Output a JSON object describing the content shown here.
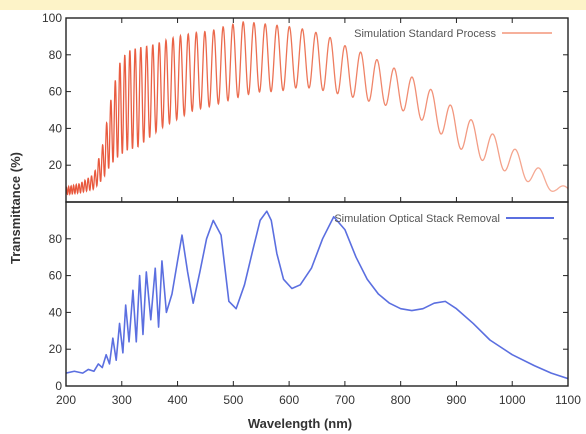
{
  "colors": {
    "top_band": "#fdf3c8",
    "series_top": "#e8553a",
    "series_top_faded": "#f6b09b",
    "series_bottom": "#5b6fe0",
    "axis": "#222222"
  },
  "chart_data": [
    {
      "type": "line",
      "xlabel": "Wavelength (nm)",
      "ylabel": "Transmittance (%)",
      "xlim": [
        200,
        1100
      ],
      "ylim": [
        0,
        100
      ],
      "y_ticks": [
        20,
        40,
        60,
        80,
        100
      ],
      "legend_position": "top-right",
      "grid": false,
      "series": [
        {
          "name": "Simulation Standard Process",
          "x": [
            200,
            225,
            250,
            265,
            280,
            295,
            310,
            330,
            350,
            370,
            400,
            430,
            460,
            490,
            520,
            550,
            580,
            610,
            640,
            670,
            700,
            740,
            780,
            820,
            860,
            900,
            950,
            1000,
            1050,
            1080,
            1100
          ],
          "y_upper": [
            8,
            10,
            15,
            30,
            55,
            75,
            82,
            84,
            85,
            87,
            90,
            92,
            93,
            96,
            98,
            97,
            96,
            95,
            93,
            90,
            85,
            80,
            74,
            68,
            60,
            50,
            40,
            30,
            18,
            10,
            8
          ],
          "y_lower": [
            4,
            5,
            7,
            12,
            20,
            25,
            28,
            30,
            35,
            40,
            45,
            50,
            52,
            55,
            58,
            60,
            60,
            62,
            62,
            60,
            58,
            55,
            52,
            48,
            40,
            30,
            22,
            15,
            8,
            5,
            4
          ]
        }
      ]
    },
    {
      "type": "line",
      "xlabel": "Wavelength (nm)",
      "xlim": [
        200,
        1100
      ],
      "ylim": [
        0,
        100
      ],
      "x_ticks": [
        200,
        300,
        400,
        500,
        600,
        700,
        800,
        900,
        1000,
        1100
      ],
      "y_ticks": [
        0,
        20,
        40,
        60,
        80
      ],
      "legend_position": "top-right",
      "grid": false,
      "series": [
        {
          "name": "Simulation Optical Stack Removal",
          "x": [
            200,
            215,
            230,
            240,
            250,
            258,
            265,
            272,
            278,
            284,
            290,
            296,
            302,
            307,
            313,
            320,
            326,
            332,
            338,
            344,
            352,
            360,
            366,
            372,
            380,
            390,
            400,
            408,
            418,
            428,
            440,
            452,
            464,
            478,
            492,
            505,
            520,
            535,
            548,
            560,
            568,
            578,
            590,
            605,
            620,
            640,
            660,
            680,
            700,
            720,
            740,
            760,
            780,
            800,
            820,
            840,
            860,
            880,
            900,
            930,
            960,
            1000,
            1040,
            1070,
            1100
          ],
          "y": [
            7,
            8,
            7,
            9,
            8,
            12,
            10,
            17,
            12,
            26,
            14,
            34,
            18,
            44,
            24,
            52,
            24,
            60,
            28,
            62,
            36,
            64,
            32,
            68,
            40,
            50,
            68,
            82,
            62,
            45,
            62,
            80,
            90,
            82,
            46,
            42,
            55,
            74,
            90,
            95,
            90,
            72,
            58,
            53,
            55,
            64,
            80,
            92,
            85,
            70,
            58,
            50,
            45,
            42,
            41,
            42,
            45,
            46,
            42,
            34,
            25,
            17,
            11,
            7,
            4
          ]
        }
      ]
    }
  ]
}
